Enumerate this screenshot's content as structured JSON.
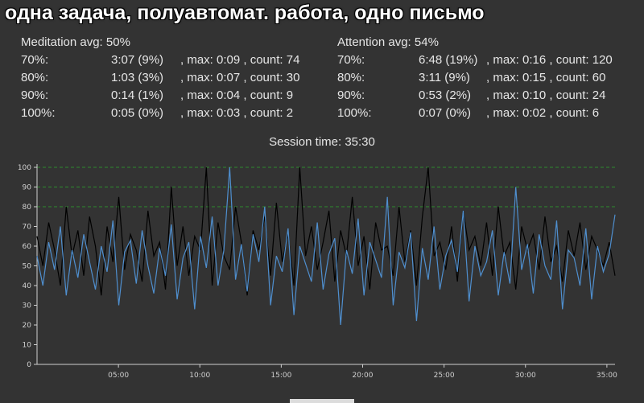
{
  "title": "одна задача, полуавтомат. работа, одно письмо",
  "meditation": {
    "header": "Meditation avg: 50%",
    "rows": [
      {
        "level": "70%:",
        "time": "3:07 (9%)",
        "rest": ", max: 0:09 , count: 74"
      },
      {
        "level": "80%:",
        "time": "1:03 (3%)",
        "rest": ", max: 0:07 , count: 30"
      },
      {
        "level": "90%:",
        "time": "0:14 (1%)",
        "rest": ", max: 0:04 , count: 9"
      },
      {
        "level": "100%:",
        "time": "0:05 (0%)",
        "rest": ", max: 0:03 , count: 2"
      }
    ]
  },
  "attention": {
    "header": "Attention avg: 54%",
    "rows": [
      {
        "level": "70%:",
        "time": "6:48 (19%)",
        "rest": ", max: 0:16 , count: 120"
      },
      {
        "level": "80%:",
        "time": "3:11 (9%)",
        "rest": ", max: 0:15 , count: 60"
      },
      {
        "level": "90%:",
        "time": "0:53 (2%)",
        "rest": ", max: 0:10 , count: 24"
      },
      {
        "level": "100%:",
        "time": "0:07 (0%)",
        "rest": ", max: 0:02 , count: 6"
      }
    ]
  },
  "session": "Session time: 35:30",
  "chart_data": {
    "type": "line",
    "xlim": [
      0,
      35.5
    ],
    "ylim": [
      0,
      100
    ],
    "y_ticks": [
      0,
      10,
      20,
      30,
      40,
      50,
      60,
      70,
      80,
      90,
      100
    ],
    "y_tick_labels": [
      "0",
      "10",
      "20",
      "30",
      "40",
      "50",
      "60",
      "70",
      "80",
      "90",
      "100"
    ],
    "x_ticks": [
      5,
      10,
      15,
      20,
      25,
      30,
      35
    ],
    "x_tick_labels": [
      "05:00",
      "10:00",
      "15:00",
      "20:00",
      "25:00",
      "30:00",
      "35:00"
    ],
    "threshold_lines": [
      80,
      90,
      100
    ],
    "colors": {
      "meditation": "#4f8fcf",
      "attention": "#000000",
      "threshold": "#2e8b2e"
    },
    "series": [
      {
        "values": [
          55,
          40,
          62,
          48,
          70,
          35,
          58,
          44,
          66,
          52,
          38,
          60,
          47,
          73,
          30,
          57,
          63,
          41,
          68,
          50,
          36,
          59,
          45,
          71,
          33,
          54,
          62,
          28,
          65,
          49,
          75,
          40,
          58,
          100,
          43,
          61,
          37,
          66,
          52,
          80,
          30,
          55,
          47,
          69,
          25,
          60,
          51,
          42,
          72,
          38,
          56,
          64,
          20,
          58,
          46,
          74,
          35,
          62,
          53,
          44,
          85,
          30,
          57,
          49,
          67,
          22,
          59,
          43,
          70,
          38,
          55,
          63,
          47,
          78,
          32,
          60,
          45,
          52,
          68,
          35,
          57,
          41,
          90,
          48,
          61,
          36,
          66,
          50,
          43,
          73,
          28,
          58,
          54,
          40,
          69,
          33,
          60,
          47,
          56,
          76
        ]
      },
      {
        "values": [
          65,
          50,
          72,
          58,
          40,
          80,
          55,
          68,
          45,
          75,
          60,
          35,
          70,
          52,
          85,
          48,
          66,
          58,
          42,
          78,
          55,
          62,
          38,
          90,
          50,
          70,
          45,
          65,
          58,
          100,
          40,
          72,
          55,
          48,
          80,
          62,
          35,
          68,
          58,
          75,
          45,
          82,
          52,
          66,
          40,
          100,
          55,
          70,
          48,
          62,
          78,
          42,
          68,
          55,
          85,
          50,
          65,
          38,
          72,
          58,
          60,
          45,
          80,
          52,
          68,
          40,
          75,
          100,
          55,
          62,
          48,
          70,
          42,
          78,
          58,
          65,
          50,
          72,
          45,
          80,
          55,
          62,
          38,
          70,
          58,
          66,
          48,
          75,
          52,
          60,
          42,
          68,
          55,
          72,
          48,
          65,
          58,
          50,
          62,
          45
        ]
      }
    ]
  }
}
